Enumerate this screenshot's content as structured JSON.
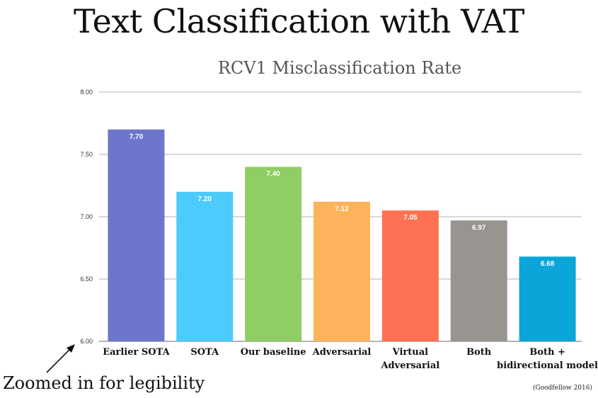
{
  "slide": {
    "title": "Text Classification with VAT",
    "annotation": "Zoomed in for legibility",
    "citation": "(Goodfellow 2016)"
  },
  "chart_data": {
    "type": "bar",
    "title": "RCV1 Misclassification Rate",
    "xlabel": "",
    "ylabel": "",
    "ylim": [
      6.0,
      8.0
    ],
    "yticks": [
      "6.00",
      "6.50",
      "7.00",
      "7.50",
      "8.00"
    ],
    "grid": true,
    "categories": [
      [
        "Earlier SOTA"
      ],
      [
        "SOTA"
      ],
      [
        "Our baseline"
      ],
      [
        "Adversarial"
      ],
      [
        "Virtual",
        "Adversarial"
      ],
      [
        "Both"
      ],
      [
        "Both +",
        "bidirectional model"
      ]
    ],
    "values": [
      7.7,
      7.2,
      7.4,
      7.12,
      7.05,
      6.97,
      6.68
    ],
    "value_labels": [
      "7.70",
      "7.20",
      "7.40",
      "7.12",
      "7.05",
      "6.97",
      "6.68"
    ],
    "colors": [
      "#6e76cb",
      "#4ccbfd",
      "#8fce65",
      "#fcb35b",
      "#ff7153",
      "#989490",
      "#0ba5d9"
    ]
  }
}
